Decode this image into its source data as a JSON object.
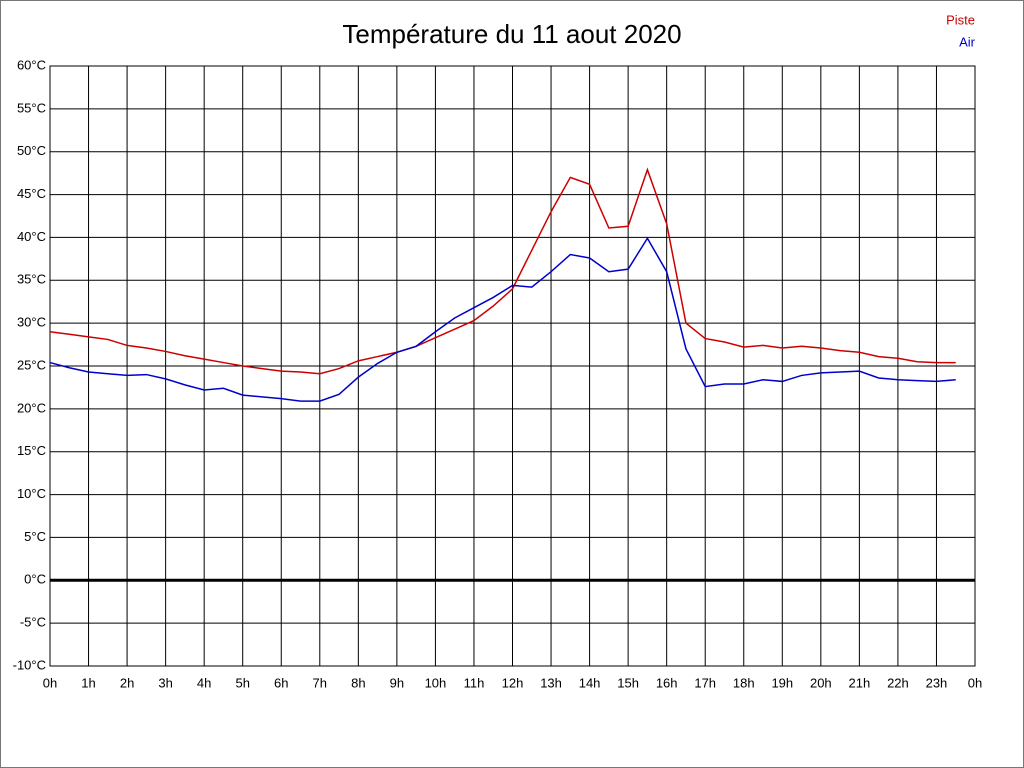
{
  "chart_data": {
    "type": "line",
    "title": "Température du 11 aout 2020",
    "x": [
      0,
      0.5,
      1,
      1.5,
      2,
      2.5,
      3,
      3.5,
      4,
      4.5,
      5,
      5.5,
      6,
      6.5,
      7,
      7.5,
      8,
      8.5,
      9,
      9.5,
      10,
      10.5,
      11,
      11.5,
      12,
      12.5,
      13,
      13.5,
      14,
      14.5,
      15,
      15.5,
      16,
      16.5,
      17,
      17.5,
      18,
      18.5,
      19,
      19.5,
      20,
      20.5,
      21,
      21.5,
      22,
      22.5,
      23,
      23.5
    ],
    "series": [
      {
        "name": "Piste",
        "color": "#cc0000",
        "values": [
          29.0,
          28.7,
          28.4,
          28.1,
          27.4,
          27.1,
          26.7,
          26.2,
          25.8,
          25.4,
          25.0,
          24.7,
          24.4,
          24.3,
          24.1,
          24.7,
          25.6,
          26.1,
          26.6,
          27.3,
          28.3,
          29.3,
          30.3,
          32.0,
          34.0,
          38.5,
          43.0,
          47.0,
          46.2,
          41.1,
          41.3,
          47.9,
          41.6,
          30.0,
          28.2,
          27.8,
          27.2,
          27.4,
          27.1,
          27.3,
          27.1,
          26.8,
          26.6,
          26.1,
          25.9,
          25.5,
          25.4,
          25.4
        ]
      },
      {
        "name": "Air",
        "color": "#0000cc",
        "values": [
          25.4,
          24.8,
          24.3,
          24.1,
          23.9,
          24.0,
          23.5,
          22.8,
          22.2,
          22.4,
          21.6,
          21.4,
          21.2,
          20.9,
          20.9,
          21.7,
          23.7,
          25.3,
          26.6,
          27.3,
          29.0,
          30.6,
          31.8,
          33.0,
          34.4,
          34.2,
          36.0,
          38.0,
          37.6,
          36.0,
          36.3,
          39.9,
          36.0,
          27.0,
          22.6,
          22.9,
          22.9,
          23.4,
          23.2,
          23.9,
          24.2,
          24.3,
          24.4,
          23.6,
          23.4,
          23.3,
          23.2,
          23.4
        ]
      }
    ],
    "xlim": [
      0,
      24
    ],
    "xticks": [
      {
        "value": 0,
        "label": "0h"
      },
      {
        "value": 1,
        "label": "1h"
      },
      {
        "value": 2,
        "label": "2h"
      },
      {
        "value": 3,
        "label": "3h"
      },
      {
        "value": 4,
        "label": "4h"
      },
      {
        "value": 5,
        "label": "5h"
      },
      {
        "value": 6,
        "label": "6h"
      },
      {
        "value": 7,
        "label": "7h"
      },
      {
        "value": 8,
        "label": "8h"
      },
      {
        "value": 9,
        "label": "9h"
      },
      {
        "value": 10,
        "label": "10h"
      },
      {
        "value": 11,
        "label": "11h"
      },
      {
        "value": 12,
        "label": "12h"
      },
      {
        "value": 13,
        "label": "13h"
      },
      {
        "value": 14,
        "label": "14h"
      },
      {
        "value": 15,
        "label": "15h"
      },
      {
        "value": 16,
        "label": "16h"
      },
      {
        "value": 17,
        "label": "17h"
      },
      {
        "value": 18,
        "label": "18h"
      },
      {
        "value": 19,
        "label": "19h"
      },
      {
        "value": 20,
        "label": "20h"
      },
      {
        "value": 21,
        "label": "21h"
      },
      {
        "value": 22,
        "label": "22h"
      },
      {
        "value": 23,
        "label": "23h"
      },
      {
        "value": 24,
        "label": "0h"
      }
    ],
    "ylim": [
      -10,
      60
    ],
    "yticks": [
      {
        "value": -10,
        "label": "-10°C"
      },
      {
        "value": -5,
        "label": "-5°C"
      },
      {
        "value": 0,
        "label": "0°C"
      },
      {
        "value": 5,
        "label": "5°C"
      },
      {
        "value": 10,
        "label": "10°C"
      },
      {
        "value": 15,
        "label": "15°C"
      },
      {
        "value": 20,
        "label": "20°C"
      },
      {
        "value": 25,
        "label": "25°C"
      },
      {
        "value": 30,
        "label": "30°C"
      },
      {
        "value": 35,
        "label": "35°C"
      },
      {
        "value": 40,
        "label": "40°C"
      },
      {
        "value": 45,
        "label": "45°C"
      },
      {
        "value": 50,
        "label": "50°C"
      },
      {
        "value": 55,
        "label": "55°C"
      },
      {
        "value": 60,
        "label": "60°C"
      }
    ],
    "grid": true,
    "legend": "top-right"
  }
}
